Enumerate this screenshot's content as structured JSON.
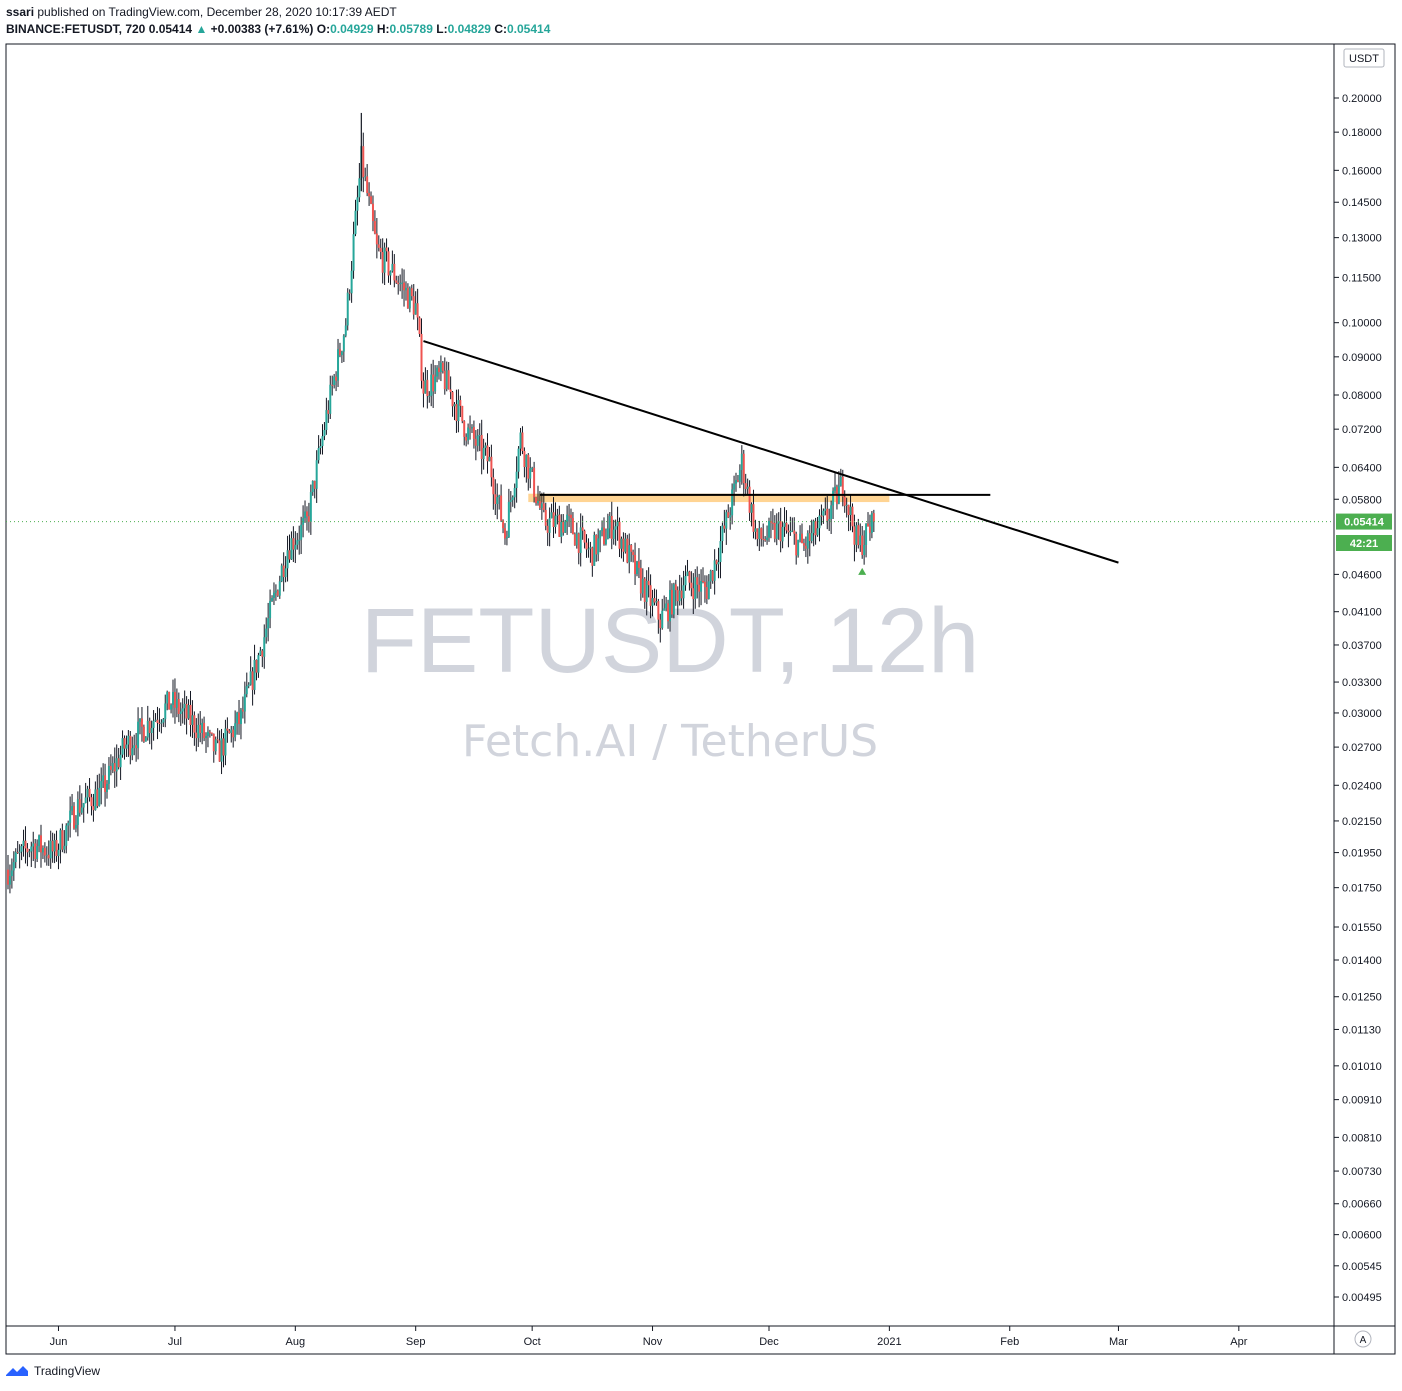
{
  "header": {
    "publisher": "ssari",
    "published_text": "published on TradingView.com, December 28, 2020 10:17:39 AEDT",
    "symbol": "BINANCE:FETUSDT, 720",
    "last": "0.05414",
    "change": "+0.00383 (+7.61%)",
    "o_label": "O:",
    "o_value": "0.04929",
    "h_label": "H:",
    "h_value": "0.05789",
    "l_label": "L:",
    "l_value": "0.04829",
    "c_label": "C:",
    "c_value": "0.05414"
  },
  "watermark": {
    "title": "FETUSDT, 12h",
    "subtitle": "Fetch.AI / TetherUS"
  },
  "price_scale": {
    "currency": "USDT",
    "last_price_label": "0.05414",
    "countdown": "42:21",
    "auto_button": "A"
  },
  "footer": {
    "brand": "TradingView"
  },
  "colors": {
    "up": "#26a69a",
    "down": "#ef5350",
    "candle": "#131722",
    "trendline": "#000000",
    "zone": "#ffcc80",
    "price_line": "#4caf50"
  },
  "chart_data": {
    "type": "candlestick",
    "y_scale": "log",
    "ylim": [
      0.0045,
      0.22
    ],
    "y_ticks": [
      "0.20000",
      "0.18000",
      "0.16000",
      "0.14500",
      "0.13000",
      "0.11500",
      "0.10000",
      "0.09000",
      "0.08000",
      "0.07200",
      "0.06400",
      "0.05800",
      "0.04600",
      "0.04100",
      "0.03700",
      "0.03300",
      "0.03000",
      "0.02700",
      "0.02400",
      "0.02150",
      "0.01950",
      "0.01750",
      "0.01550",
      "0.01400",
      "0.01250",
      "0.01130",
      "0.01010",
      "0.00910",
      "0.00810",
      "0.00730",
      "0.00660",
      "0.00600",
      "0.00545",
      "0.00495"
    ],
    "x_ticks": [
      "Jun",
      "Jul",
      "Aug",
      "Sep",
      "Oct",
      "Nov",
      "Dec",
      "2021",
      "Feb",
      "Mar",
      "Apr"
    ],
    "x_range": [
      "2020-05-19",
      "2021-04-25"
    ],
    "series_path": [
      [
        "2020-05-19",
        0.0185
      ],
      [
        "2020-05-25",
        0.02
      ],
      [
        "2020-05-31",
        0.0195
      ],
      [
        "2020-06-06",
        0.0225
      ],
      [
        "2020-06-12",
        0.0235
      ],
      [
        "2020-06-18",
        0.027
      ],
      [
        "2020-06-24",
        0.029
      ],
      [
        "2020-06-30",
        0.031
      ],
      [
        "2020-07-06",
        0.029
      ],
      [
        "2020-07-12",
        0.0265
      ],
      [
        "2020-07-18",
        0.0295
      ],
      [
        "2020-07-24",
        0.038
      ],
      [
        "2020-07-30",
        0.05
      ],
      [
        "2020-08-04",
        0.054
      ],
      [
        "2020-08-09",
        0.075
      ],
      [
        "2020-08-14",
        0.1
      ],
      [
        "2020-08-18",
        0.165
      ],
      [
        "2020-08-22",
        0.125
      ],
      [
        "2020-08-27",
        0.115
      ],
      [
        "2020-09-01",
        0.105
      ],
      [
        "2020-09-03",
        0.082
      ],
      [
        "2020-09-08",
        0.085
      ],
      [
        "2020-09-14",
        0.072
      ],
      [
        "2020-09-20",
        0.065
      ],
      [
        "2020-09-24",
        0.052
      ],
      [
        "2020-09-28",
        0.07
      ],
      [
        "2020-10-04",
        0.054
      ],
      [
        "2020-10-10",
        0.054
      ],
      [
        "2020-10-16",
        0.049
      ],
      [
        "2020-10-22",
        0.054
      ],
      [
        "2020-10-28",
        0.046
      ],
      [
        "2020-11-03",
        0.04
      ],
      [
        "2020-11-09",
        0.045
      ],
      [
        "2020-11-15",
        0.044
      ],
      [
        "2020-11-20",
        0.054
      ],
      [
        "2020-11-24",
        0.065
      ],
      [
        "2020-11-28",
        0.051
      ],
      [
        "2020-12-04",
        0.053
      ],
      [
        "2020-12-10",
        0.05
      ],
      [
        "2020-12-16",
        0.055
      ],
      [
        "2020-12-20",
        0.061
      ],
      [
        "2020-12-24",
        0.05
      ],
      [
        "2020-12-28",
        0.0541
      ]
    ],
    "peak": {
      "x": "2020-08-18",
      "y": 0.191
    },
    "last_close": 0.05414,
    "trendlines": [
      {
        "name": "descending-resistance",
        "from": [
          "2020-09-03",
          0.0945
        ],
        "to": [
          "2021-03-01",
          0.0477
        ]
      },
      {
        "name": "horizontal-resistance",
        "from": [
          "2020-10-03",
          0.0588
        ],
        "to": [
          "2021-01-27",
          0.0588
        ]
      }
    ],
    "zone": {
      "from": "2020-09-30",
      "to": "2021-01-01",
      "low": 0.0575,
      "high": 0.059
    }
  }
}
